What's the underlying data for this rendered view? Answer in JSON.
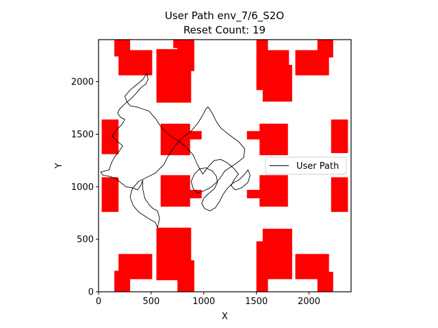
{
  "chart_data": {
    "type": "line",
    "title": "User Path env_7/6_S2O",
    "subtitle": "Reset Count: 19",
    "xlabel": "X",
    "ylabel": "Y",
    "xlim": [
      0,
      2400
    ],
    "ylim": [
      0,
      2400
    ],
    "x_ticks": [
      0,
      500,
      1000,
      1500,
      2000
    ],
    "y_ticks": [
      0,
      500,
      1000,
      1500,
      2000
    ],
    "grid": false,
    "legend_position": "right",
    "obstacle_color": "#ff0000",
    "path_color": "#000000",
    "obstacles": [
      {
        "x0": 150,
        "y0": 2240,
        "x1": 300,
        "y1": 2400
      },
      {
        "x0": 190,
        "y0": 2060,
        "x1": 510,
        "y1": 2300
      },
      {
        "x0": 550,
        "y0": 1800,
        "x1": 880,
        "y1": 2310
      },
      {
        "x0": 710,
        "y0": 2320,
        "x1": 900,
        "y1": 2400
      },
      {
        "x0": 750,
        "y0": 2100,
        "x1": 910,
        "y1": 2400
      },
      {
        "x0": 1500,
        "y0": 1920,
        "x1": 1610,
        "y1": 2400
      },
      {
        "x0": 1540,
        "y0": 2060,
        "x1": 1810,
        "y1": 2300
      },
      {
        "x0": 1560,
        "y0": 1810,
        "x1": 1840,
        "y1": 2160
      },
      {
        "x0": 1870,
        "y0": 2060,
        "x1": 2190,
        "y1": 2300
      },
      {
        "x0": 2080,
        "y0": 2230,
        "x1": 2230,
        "y1": 2400
      },
      {
        "x0": 30,
        "y0": 1310,
        "x1": 190,
        "y1": 1640
      },
      {
        "x0": 590,
        "y0": 1300,
        "x1": 870,
        "y1": 1600
      },
      {
        "x0": 840,
        "y0": 1450,
        "x1": 980,
        "y1": 1530
      },
      {
        "x0": 1410,
        "y0": 1450,
        "x1": 1550,
        "y1": 1530
      },
      {
        "x0": 1530,
        "y0": 1300,
        "x1": 1800,
        "y1": 1600
      },
      {
        "x0": 2210,
        "y0": 1320,
        "x1": 2370,
        "y1": 1640
      },
      {
        "x0": 30,
        "y0": 760,
        "x1": 190,
        "y1": 1090
      },
      {
        "x0": 590,
        "y0": 810,
        "x1": 870,
        "y1": 1110
      },
      {
        "x0": 840,
        "y0": 890,
        "x1": 980,
        "y1": 970
      },
      {
        "x0": 1410,
        "y0": 890,
        "x1": 1550,
        "y1": 970
      },
      {
        "x0": 1530,
        "y0": 810,
        "x1": 1800,
        "y1": 1110
      },
      {
        "x0": 2210,
        "y0": 760,
        "x1": 2370,
        "y1": 1090
      },
      {
        "x0": 550,
        "y0": 110,
        "x1": 880,
        "y1": 610
      },
      {
        "x0": 750,
        "y0": 0,
        "x1": 910,
        "y1": 300
      },
      {
        "x0": 190,
        "y0": 120,
        "x1": 510,
        "y1": 360
      },
      {
        "x0": 150,
        "y0": 0,
        "x1": 300,
        "y1": 200
      },
      {
        "x0": 1500,
        "y0": 0,
        "x1": 1610,
        "y1": 480
      },
      {
        "x0": 1560,
        "y0": 120,
        "x1": 1840,
        "y1": 600
      },
      {
        "x0": 1870,
        "y0": 120,
        "x1": 2190,
        "y1": 360
      },
      {
        "x0": 2080,
        "y0": 0,
        "x1": 2230,
        "y1": 190
      }
    ],
    "series": [
      {
        "name": "User Path",
        "points": [
          [
            560,
            610
          ],
          [
            540,
            660
          ],
          [
            470,
            700
          ],
          [
            380,
            760
          ],
          [
            330,
            820
          ],
          [
            300,
            900
          ],
          [
            320,
            980
          ],
          [
            380,
            1050
          ],
          [
            460,
            1090
          ],
          [
            540,
            1130
          ],
          [
            620,
            1210
          ],
          [
            660,
            1290
          ],
          [
            720,
            1380
          ],
          [
            800,
            1470
          ],
          [
            880,
            1530
          ],
          [
            940,
            1600
          ],
          [
            990,
            1680
          ],
          [
            1020,
            1740
          ],
          [
            1040,
            1760
          ],
          [
            1080,
            1700
          ],
          [
            1120,
            1620
          ],
          [
            1160,
            1560
          ],
          [
            1210,
            1520
          ],
          [
            1260,
            1480
          ],
          [
            1330,
            1430
          ],
          [
            1390,
            1360
          ],
          [
            1380,
            1280
          ],
          [
            1320,
            1230
          ],
          [
            1260,
            1190
          ],
          [
            1200,
            1150
          ],
          [
            1160,
            1090
          ],
          [
            1120,
            1040
          ],
          [
            1060,
            990
          ],
          [
            1000,
            960
          ],
          [
            940,
            940
          ],
          [
            900,
            980
          ],
          [
            880,
            1050
          ],
          [
            910,
            1120
          ],
          [
            960,
            1170
          ],
          [
            1020,
            1180
          ],
          [
            1080,
            1150
          ],
          [
            1120,
            1100
          ],
          [
            1130,
            1040
          ],
          [
            1100,
            980
          ],
          [
            1040,
            930
          ],
          [
            1000,
            890
          ],
          [
            980,
            840
          ],
          [
            1010,
            790
          ],
          [
            1060,
            770
          ],
          [
            1110,
            800
          ],
          [
            1150,
            860
          ],
          [
            1180,
            920
          ],
          [
            1220,
            980
          ],
          [
            1270,
            1030
          ],
          [
            1340,
            1070
          ],
          [
            1390,
            1120
          ],
          [
            1420,
            1160
          ],
          [
            1440,
            1110
          ],
          [
            1420,
            1040
          ],
          [
            1360,
            990
          ],
          [
            1300,
            970
          ],
          [
            1260,
            1010
          ],
          [
            1290,
            1070
          ],
          [
            1330,
            1120
          ],
          [
            1280,
            1180
          ],
          [
            1220,
            1230
          ],
          [
            1160,
            1260
          ],
          [
            1100,
            1250
          ],
          [
            1060,
            1210
          ],
          [
            1020,
            1160
          ],
          [
            990,
            1120
          ],
          [
            940,
            1210
          ],
          [
            900,
            1300
          ],
          [
            840,
            1370
          ],
          [
            780,
            1420
          ],
          [
            720,
            1460
          ],
          [
            660,
            1500
          ],
          [
            600,
            1560
          ],
          [
            540,
            1650
          ],
          [
            480,
            1720
          ],
          [
            420,
            1740
          ],
          [
            360,
            1760
          ],
          [
            300,
            1770
          ],
          [
            270,
            1810
          ],
          [
            250,
            1860
          ],
          [
            300,
            1920
          ],
          [
            360,
            1970
          ],
          [
            420,
            2020
          ],
          [
            460,
            2080
          ],
          [
            470,
            2020
          ],
          [
            450,
            1980
          ],
          [
            400,
            1940
          ],
          [
            350,
            1880
          ],
          [
            300,
            1830
          ],
          [
            240,
            1780
          ],
          [
            200,
            1740
          ],
          [
            180,
            1700
          ],
          [
            210,
            1660
          ],
          [
            250,
            1640
          ],
          [
            220,
            1590
          ],
          [
            170,
            1540
          ],
          [
            130,
            1480
          ],
          [
            180,
            1430
          ],
          [
            230,
            1390
          ],
          [
            190,
            1330
          ],
          [
            150,
            1280
          ],
          [
            120,
            1220
          ],
          [
            100,
            1160
          ],
          [
            60,
            1150
          ],
          [
            20,
            1140
          ],
          [
            40,
            1110
          ],
          [
            100,
            1100
          ],
          [
            160,
            1080
          ],
          [
            210,
            1040
          ],
          [
            260,
            1000
          ],
          [
            320,
            990
          ],
          [
            370,
            970
          ],
          [
            400,
            1010
          ],
          [
            420,
            1060
          ],
          [
            420,
            980
          ],
          [
            440,
            890
          ],
          [
            480,
            830
          ],
          [
            520,
            790
          ],
          [
            560,
            770
          ],
          [
            580,
            700
          ],
          [
            560,
            610
          ]
        ]
      }
    ]
  }
}
